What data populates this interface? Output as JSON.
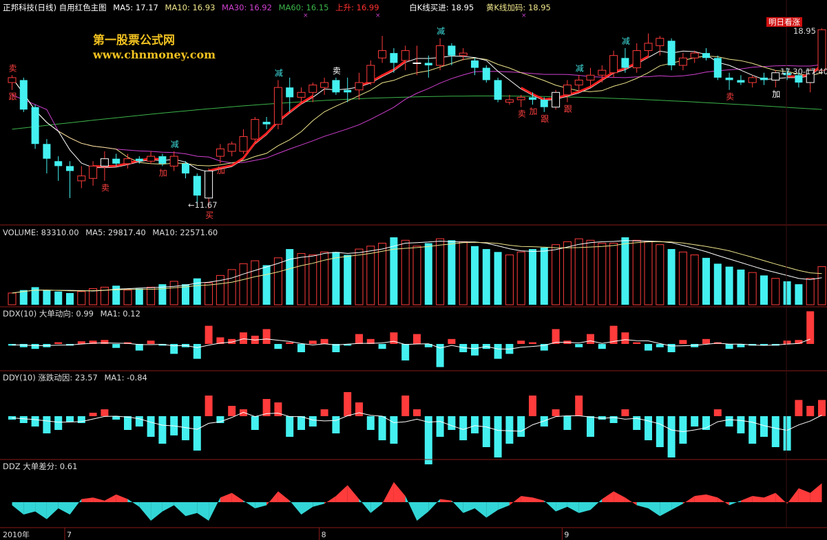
{
  "header": {
    "title": "正邦科技(日线) 自用红色主图",
    "ma5": "MA5: 17.17",
    "ma10": "MA10: 16.93",
    "ma30": "MA30: 16.92",
    "ma60": "MA60: 16.15",
    "rise": "上升: 16.99",
    "white_k": "白K线买进: 18.95",
    "yellow_k": "黄K线加码: 18.95"
  },
  "watermark": {
    "line1": "第一股票公式网",
    "line2": "www.chnmoney.com"
  },
  "colors": {
    "up": "#ff3b3b",
    "down": "#44f0f0",
    "ma5": "#ffffff",
    "ma10": "#f0e68c",
    "ma30": "#d040d0",
    "ma60": "#3cb44b",
    "rise": "#ff2020",
    "border": "#8a1a1a"
  },
  "main_panel": {
    "badge": "明日看涨",
    "last_high": "18.95",
    "range_label": "17.30-17.40",
    "low_marker": "←11.67",
    "signals": [
      {
        "i": 0,
        "text": "卖",
        "color": "#ff4040",
        "pos": "above"
      },
      {
        "i": 0,
        "text": "跟",
        "color": "#ff4040",
        "pos": "below"
      },
      {
        "i": 8,
        "text": "卖",
        "color": "#ff4040",
        "pos": "below"
      },
      {
        "i": 14,
        "text": "减",
        "color": "#40e0e0",
        "pos": "above"
      },
      {
        "i": 13,
        "text": "加",
        "color": "#ff4040",
        "pos": "below"
      },
      {
        "i": 17,
        "text": "买",
        "color": "#ff4040",
        "pos": "below"
      },
      {
        "i": 18,
        "text": "加",
        "color": "#ff4040",
        "pos": "below"
      },
      {
        "i": 23,
        "text": "减",
        "color": "#40e0e0",
        "pos": "above"
      },
      {
        "i": 28,
        "text": "卖",
        "color": "#ffffff",
        "pos": "above"
      },
      {
        "i": 37,
        "text": "减",
        "color": "#40e0e0",
        "pos": "above"
      },
      {
        "i": 44,
        "text": "卖",
        "color": "#ff4040",
        "pos": "below"
      },
      {
        "i": 45,
        "text": "加",
        "color": "#ff4040",
        "pos": "below"
      },
      {
        "i": 46,
        "text": "跟",
        "color": "#ff4040",
        "pos": "below"
      },
      {
        "i": 48,
        "text": "跟",
        "color": "#ff4040",
        "pos": "below"
      },
      {
        "i": 49,
        "text": "减",
        "color": "#40e0e0",
        "pos": "above"
      },
      {
        "i": 53,
        "text": "减",
        "color": "#40e0e0",
        "pos": "above"
      },
      {
        "i": 62,
        "text": "卖",
        "color": "#ff4040",
        "pos": "below"
      },
      {
        "i": 66,
        "text": "加",
        "color": "#ffffff",
        "pos": "below"
      }
    ]
  },
  "volume_header": {
    "volume": "VOLUME: 83310.00",
    "ma5": "MA5: 29817.40",
    "ma10": "MA10: 22571.60"
  },
  "ddx_header": {
    "name": "DDX(10) 大单动向: 0.99",
    "ma": "MA1: 0.12"
  },
  "ddy_header": {
    "name": "DDY(10) 涨跌动因: 23.57",
    "ma": "MA1: -0.84"
  },
  "ddz_header": {
    "name": "DDZ 大单差分: 0.61"
  },
  "x_axis": {
    "year": "2010年",
    "months": [
      {
        "label": "7",
        "i": 5
      },
      {
        "label": "8",
        "i": 27
      },
      {
        "label": "9",
        "i": 48
      }
    ]
  },
  "chart_data": [
    {
      "type": "candlestick",
      "title": "正邦科技(日线) 自用红色主图",
      "ylim": [
        11.2,
        19.6
      ],
      "candles": [
        [
          16.8,
          17.1,
          16.5,
          17.0
        ],
        [
          16.9,
          17.0,
          15.6,
          15.7
        ],
        [
          15.8,
          15.9,
          14.1,
          14.3
        ],
        [
          14.3,
          14.5,
          13.1,
          13.7
        ],
        [
          13.6,
          13.8,
          12.8,
          13.4
        ],
        [
          13.4,
          13.6,
          12.1,
          13.2
        ],
        [
          12.8,
          13.4,
          12.5,
          13.0
        ],
        [
          12.9,
          13.6,
          12.6,
          13.4
        ],
        [
          13.4,
          14.0,
          12.8,
          13.7
        ],
        [
          13.7,
          13.9,
          13.4,
          13.5
        ],
        [
          13.5,
          13.9,
          13.3,
          13.7
        ],
        [
          13.7,
          13.8,
          13.5,
          13.6
        ],
        [
          13.6,
          14.0,
          13.5,
          13.8
        ],
        [
          13.8,
          13.9,
          13.4,
          13.5
        ],
        [
          13.4,
          14.0,
          13.2,
          13.8
        ],
        [
          13.5,
          13.6,
          12.9,
          13.1
        ],
        [
          13.0,
          13.1,
          11.8,
          12.2
        ],
        [
          12.1,
          13.3,
          11.67,
          13.2
        ],
        [
          13.8,
          14.3,
          13.5,
          14.1
        ],
        [
          14.0,
          14.4,
          13.8,
          14.3
        ],
        [
          14.0,
          14.9,
          13.9,
          14.6
        ],
        [
          14.5,
          15.4,
          14.3,
          15.3
        ],
        [
          15.2,
          15.4,
          14.9,
          15.1
        ],
        [
          15.1,
          16.9,
          14.9,
          16.6
        ],
        [
          16.6,
          17.0,
          15.6,
          16.2
        ],
        [
          16.2,
          16.6,
          15.9,
          16.4
        ],
        [
          16.4,
          16.8,
          16.0,
          16.7
        ],
        [
          16.6,
          17.0,
          16.3,
          16.8
        ],
        [
          16.9,
          17.0,
          16.3,
          16.4
        ],
        [
          16.5,
          17.0,
          16.0,
          16.4
        ],
        [
          16.5,
          17.2,
          16.1,
          16.8
        ],
        [
          16.8,
          17.7,
          16.7,
          17.5
        ],
        [
          17.8,
          18.7,
          17.6,
          18.1
        ],
        [
          18.0,
          18.2,
          17.2,
          17.6
        ],
        [
          17.7,
          18.3,
          17.3,
          18.1
        ],
        [
          17.6,
          18.3,
          17.1,
          17.6
        ],
        [
          17.6,
          17.9,
          17.0,
          17.5
        ],
        [
          17.5,
          18.6,
          17.3,
          18.3
        ],
        [
          18.3,
          18.4,
          17.5,
          17.9
        ],
        [
          17.9,
          18.2,
          17.7,
          18.0
        ],
        [
          17.7,
          17.8,
          17.1,
          17.4
        ],
        [
          17.4,
          17.5,
          16.8,
          16.9
        ],
        [
          16.9,
          17.0,
          16.0,
          16.1
        ],
        [
          16.0,
          16.3,
          15.9,
          16.1
        ],
        [
          16.1,
          16.3,
          15.8,
          16.2
        ],
        [
          16.2,
          16.4,
          15.9,
          16.1
        ],
        [
          16.1,
          16.2,
          15.6,
          15.8
        ],
        [
          15.8,
          16.5,
          15.7,
          16.4
        ],
        [
          16.3,
          16.9,
          16.0,
          16.7
        ],
        [
          16.7,
          17.1,
          16.4,
          16.9
        ],
        [
          16.9,
          17.4,
          16.6,
          17.1
        ],
        [
          17.1,
          17.5,
          16.8,
          17.3
        ],
        [
          17.2,
          18.1,
          17.0,
          17.9
        ],
        [
          17.8,
          18.2,
          17.2,
          17.4
        ],
        [
          17.4,
          18.4,
          17.2,
          18.1
        ],
        [
          18.1,
          18.8,
          17.8,
          18.4
        ],
        [
          18.3,
          18.7,
          17.9,
          18.6
        ],
        [
          18.5,
          18.6,
          17.3,
          17.5
        ],
        [
          17.5,
          18.0,
          17.3,
          17.8
        ],
        [
          17.8,
          18.1,
          17.6,
          18.0
        ],
        [
          18.0,
          18.2,
          17.7,
          17.8
        ],
        [
          17.8,
          17.9,
          16.9,
          17.0
        ],
        [
          17.0,
          17.2,
          16.5,
          16.9
        ],
        [
          16.9,
          17.1,
          16.7,
          16.8
        ],
        [
          16.8,
          17.1,
          16.6,
          17.0
        ],
        [
          17.0,
          17.2,
          16.7,
          16.9
        ],
        [
          16.9,
          17.3,
          16.6,
          17.2
        ],
        [
          17.2,
          17.4,
          16.9,
          17.1
        ],
        [
          17.1,
          17.3,
          16.6,
          16.8
        ],
        [
          16.8,
          17.4,
          16.4,
          17.3
        ],
        [
          17.3,
          19.0,
          17.2,
          18.95
        ]
      ]
    },
    {
      "type": "bar",
      "title": "VOLUME: 83310.00",
      "series": [
        {
          "name": "VOLUME",
          "values": [
            8,
            10,
            12,
            10,
            9,
            8,
            9,
            11,
            12,
            13,
            10,
            11,
            12,
            14,
            16,
            14,
            18,
            15,
            20,
            24,
            28,
            30,
            27,
            32,
            38,
            35,
            34,
            36,
            36,
            34,
            38,
            40,
            42,
            46,
            44,
            40,
            42,
            45,
            44,
            43,
            40,
            38,
            36,
            34,
            36,
            38,
            39,
            41,
            43,
            45,
            44,
            42,
            42,
            46,
            44,
            43,
            41,
            38,
            36,
            34,
            32,
            28,
            26,
            24,
            22,
            20,
            18,
            16,
            14,
            18,
            26
          ]
        }
      ]
    },
    {
      "type": "bar",
      "title": "DDX(10) 大单动向: 0.99",
      "series": [
        {
          "name": "DDX",
          "values": [
            -0.05,
            -0.1,
            -0.15,
            -0.1,
            0.05,
            -0.05,
            0.08,
            0.1,
            0.12,
            -0.12,
            0.05,
            -0.2,
            0.1,
            -0.05,
            -0.3,
            -0.1,
            -0.45,
            0.55,
            0.2,
            0.15,
            0.35,
            0.25,
            0.45,
            -0.15,
            0.05,
            -0.25,
            0.1,
            0.15,
            -0.25,
            -0.05,
            0.3,
            0.15,
            -0.15,
            0.35,
            -0.5,
            0.3,
            -0.1,
            -0.7,
            0.15,
            -0.25,
            -0.35,
            -0.15,
            -0.45,
            -0.3,
            0.1,
            0.05,
            -0.2,
            0.45,
            0.1,
            -0.1,
            0.3,
            -0.15,
            0.55,
            0.35,
            0.05,
            -0.2,
            -0.1,
            -0.25,
            0.12,
            -0.1,
            0.15,
            0.05,
            -0.15,
            -0.1,
            -0.05,
            -0.05,
            -0.05,
            0.1,
            0.12,
            0.99
          ]
        }
      ]
    },
    {
      "type": "bar",
      "title": "DDY(10) 涨跌动因: 23.57",
      "series": [
        {
          "name": "DDY",
          "values": [
            -5,
            -10,
            -15,
            -25,
            -20,
            -8,
            -10,
            5,
            10,
            -5,
            -20,
            -15,
            -30,
            -40,
            -28,
            -35,
            -50,
            30,
            -10,
            15,
            10,
            -20,
            25,
            20,
            -30,
            -20,
            -15,
            10,
            -25,
            35,
            20,
            -20,
            -35,
            -40,
            30,
            10,
            -70,
            -30,
            -20,
            -35,
            -25,
            -45,
            -60,
            -40,
            -30,
            30,
            -15,
            10,
            -20,
            30,
            -30,
            -5,
            -10,
            10,
            -20,
            -35,
            -45,
            -60,
            -40,
            -15,
            -20,
            10,
            -15,
            -25,
            -40,
            -30,
            -45,
            -50,
            23.57,
            15,
            23.57
          ]
        }
      ]
    },
    {
      "type": "area",
      "title": "DDZ 大单差分: 0.61",
      "series": [
        {
          "name": "DDZ",
          "values": [
            -0.1,
            -0.4,
            -0.3,
            -0.55,
            -0.2,
            -0.4,
            0.1,
            0.15,
            0.05,
            0.25,
            0.1,
            -0.15,
            -0.6,
            -0.3,
            -0.1,
            -0.45,
            -0.35,
            -0.6,
            0.15,
            0.3,
            0.05,
            -0.2,
            -0.1,
            0.35,
            0.05,
            -0.4,
            -0.15,
            -0.05,
            0.2,
            0.55,
            0.1,
            -0.35,
            -0.05,
            0.65,
            0.2,
            -0.6,
            -0.3,
            0.1,
            0.05,
            -0.35,
            -0.2,
            -0.5,
            -0.25,
            -0.1,
            0.2,
            0.15,
            0.05,
            -0.3,
            -0.15,
            -0.35,
            -0.25,
            0.1,
            0.35,
            0.15,
            -0.1,
            -0.2,
            -0.45,
            -0.25,
            -0.05,
            0.2,
            0.25,
            0.15,
            -0.1,
            0.05,
            0.2,
            0.15,
            0.3,
            -0.05,
            0.45,
            0.3,
            0.61
          ]
        }
      ]
    }
  ]
}
